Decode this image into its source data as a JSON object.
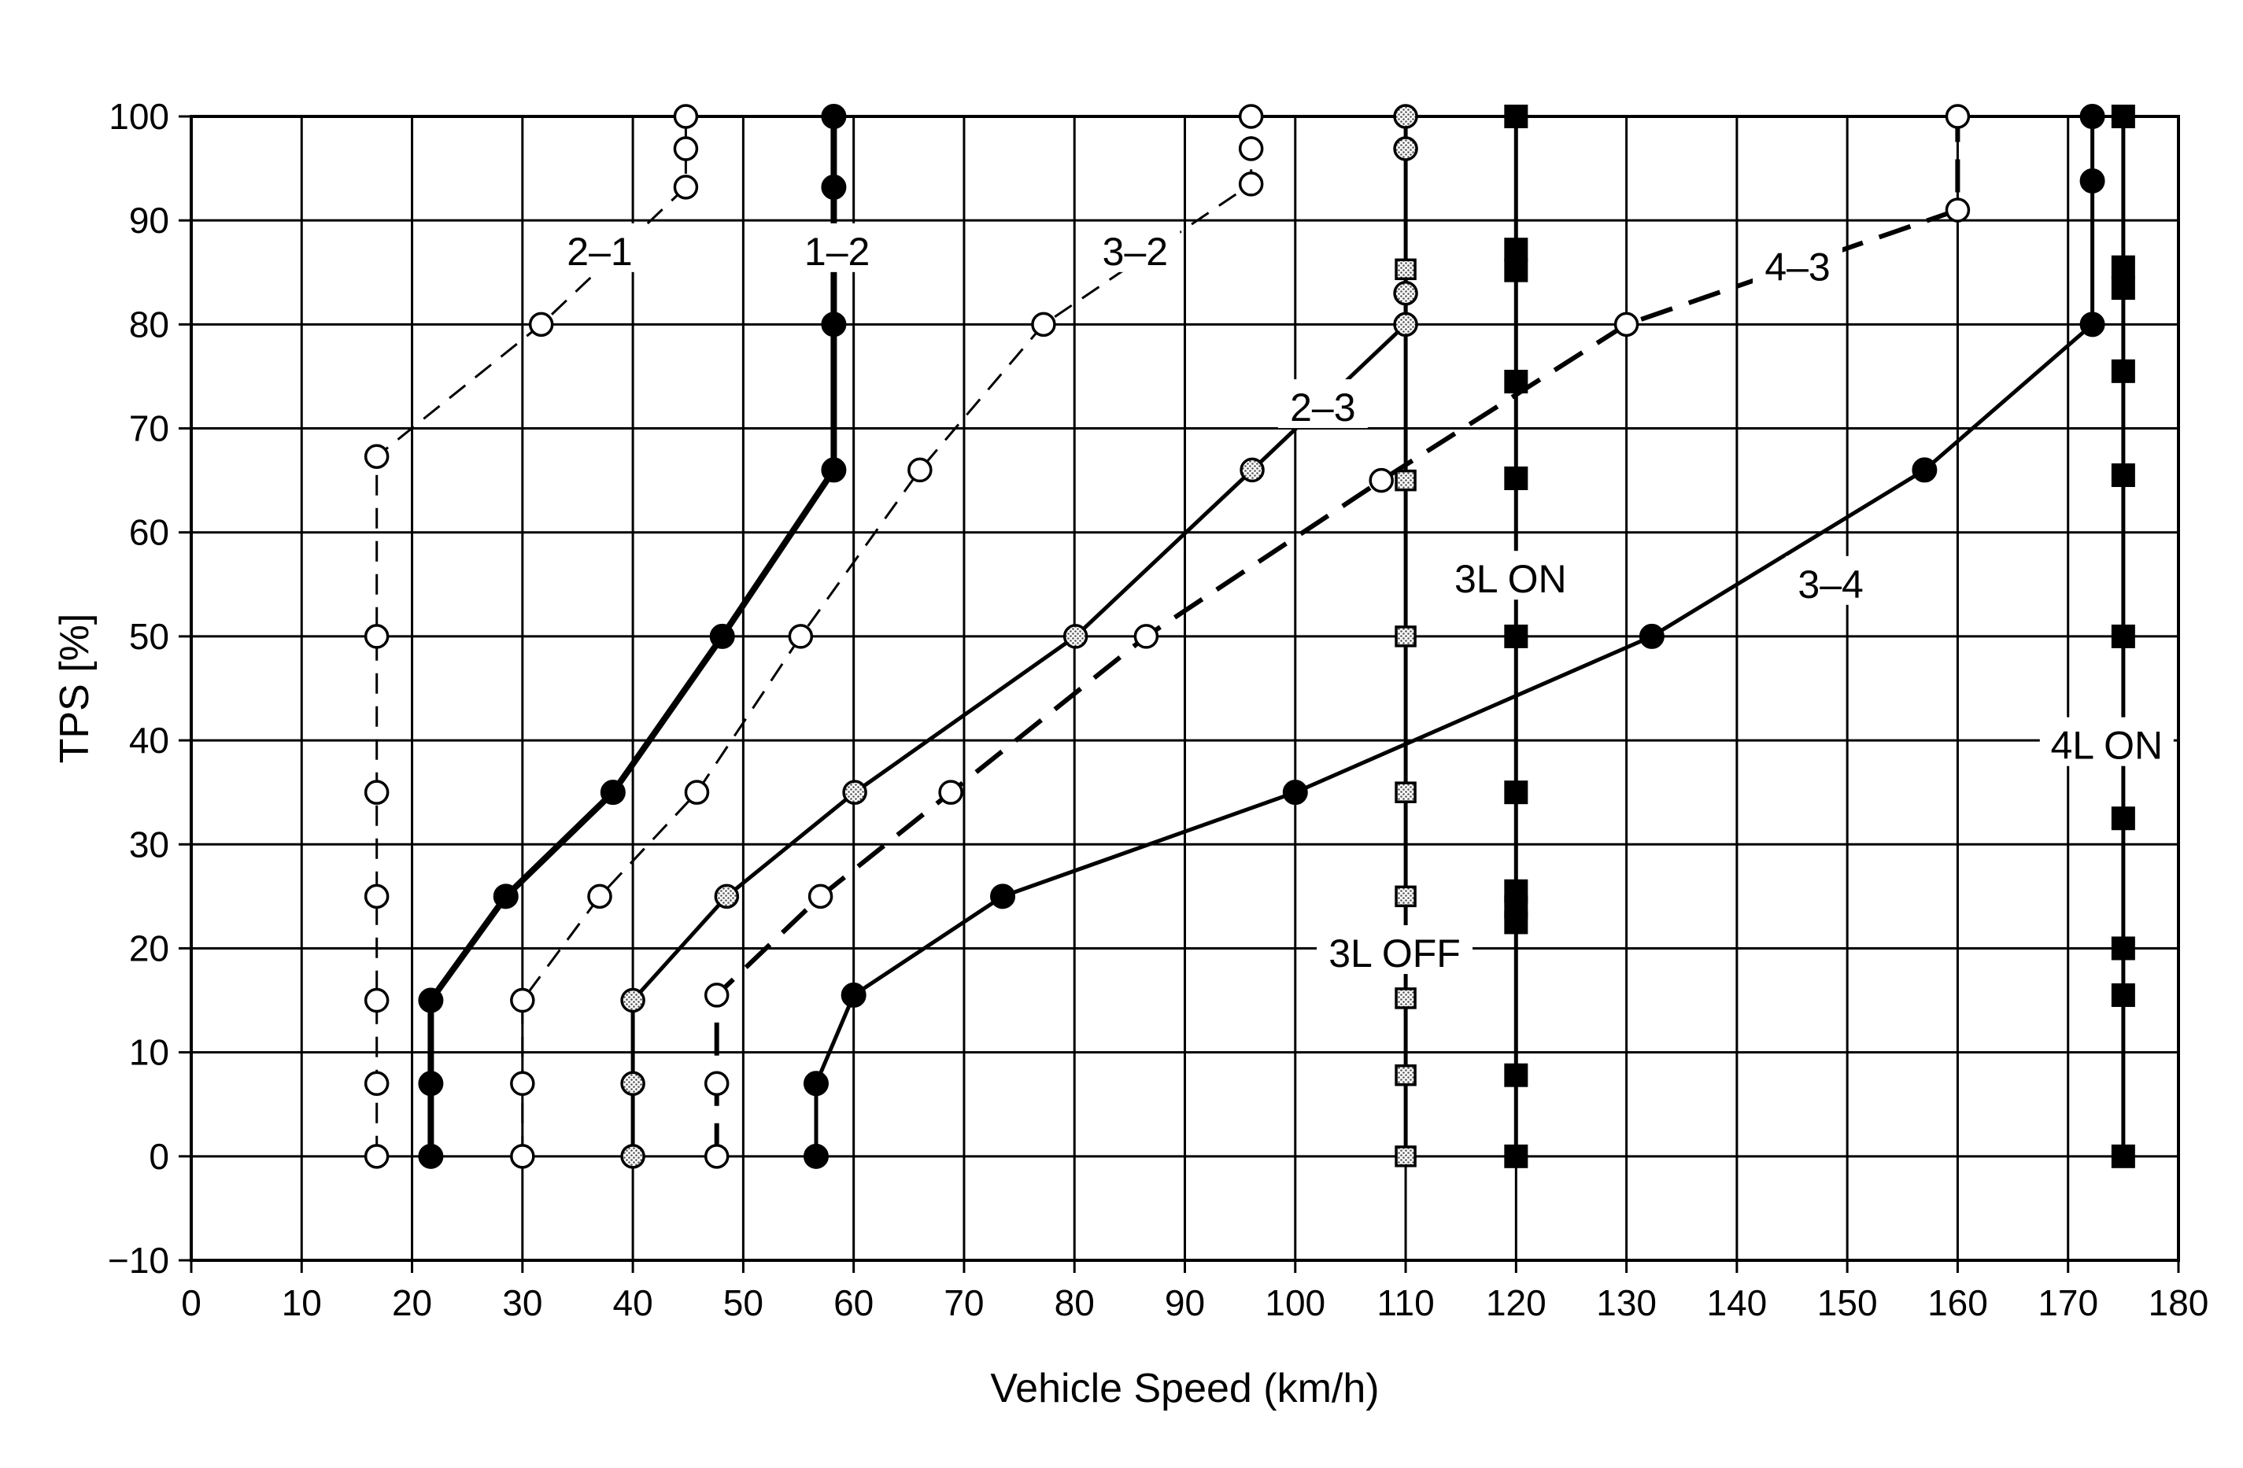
{
  "chart_data": {
    "type": "line",
    "title": "",
    "xlabel": "Vehicle Speed (km/h)",
    "ylabel": "TPS [%]",
    "xlim": [
      0,
      180
    ],
    "ylim": [
      -10,
      100
    ],
    "xticks": [
      0,
      10,
      20,
      30,
      40,
      50,
      60,
      70,
      80,
      90,
      100,
      110,
      120,
      130,
      140,
      150,
      160,
      170,
      180
    ],
    "yticks": [
      -10,
      0,
      10,
      20,
      30,
      40,
      50,
      60,
      70,
      80,
      90,
      100
    ],
    "grid": true,
    "colors": {
      "line": "#000000",
      "grid": "#000000",
      "shade": "#bdbdbd",
      "background": "#ffffff"
    },
    "series": [
      {
        "name": "2–1",
        "style": "dashed-thin",
        "marker": "open-circle",
        "points": [
          [
            16.8,
            0
          ],
          [
            16.8,
            7
          ],
          [
            16.8,
            15
          ],
          [
            16.8,
            25
          ],
          [
            16.8,
            35
          ],
          [
            16.8,
            50
          ],
          [
            16.8,
            67.3
          ],
          [
            31.7,
            80
          ],
          [
            44.8,
            93.2
          ],
          [
            44.8,
            96.9
          ],
          [
            44.8,
            100
          ]
        ]
      },
      {
        "name": "1–2",
        "style": "solid-thick",
        "marker": "filled-circle",
        "points": [
          [
            21.7,
            0
          ],
          [
            21.7,
            7
          ],
          [
            21.7,
            15
          ],
          [
            28.5,
            25
          ],
          [
            38.2,
            35
          ],
          [
            48.1,
            50
          ],
          [
            58.2,
            66
          ],
          [
            58.2,
            80
          ],
          [
            58.2,
            93.2
          ],
          [
            58.2,
            100
          ]
        ]
      },
      {
        "name": "3–2",
        "style": "dashed-thin",
        "marker": "open-circle",
        "points": [
          [
            30,
            0
          ],
          [
            30,
            7
          ],
          [
            30,
            15
          ],
          [
            37,
            25
          ],
          [
            45.8,
            35
          ],
          [
            55.2,
            50
          ],
          [
            66,
            66
          ],
          [
            77.2,
            80
          ],
          [
            96,
            93.5
          ],
          [
            96,
            96.9
          ],
          [
            96,
            100
          ]
        ]
      },
      {
        "name": "2–3",
        "style": "solid",
        "marker": "shaded-circle",
        "points": [
          [
            40,
            0
          ],
          [
            40,
            7
          ],
          [
            40,
            15
          ],
          [
            48.5,
            25
          ],
          [
            60.1,
            35
          ],
          [
            80.1,
            50
          ],
          [
            96.1,
            66
          ],
          [
            110,
            80
          ],
          [
            110,
            83
          ],
          [
            110,
            96.9
          ],
          [
            110,
            100
          ]
        ]
      },
      {
        "name": "4–3",
        "style": "dashed-thick",
        "marker": "open-circle",
        "points": [
          [
            47.6,
            0
          ],
          [
            47.6,
            7
          ],
          [
            47.6,
            15.5
          ],
          [
            57,
            25
          ],
          [
            68.8,
            35
          ],
          [
            86.5,
            50
          ],
          [
            107.8,
            65
          ],
          [
            130,
            80
          ],
          [
            160,
            91
          ],
          [
            160,
            100
          ]
        ]
      },
      {
        "name": "3–4",
        "style": "solid",
        "marker": "filled-circle",
        "points": [
          [
            56.6,
            0
          ],
          [
            56.6,
            7
          ],
          [
            60,
            15.5
          ],
          [
            73.5,
            25
          ],
          [
            100,
            35
          ],
          [
            132.3,
            50
          ],
          [
            157,
            66
          ],
          [
            172.2,
            80
          ],
          [
            172.2,
            93.8
          ],
          [
            172.2,
            100
          ]
        ]
      },
      {
        "name": "3L OFF",
        "style": "solid",
        "marker": "shaded-square",
        "points": [
          [
            110,
            0
          ],
          [
            110,
            7.8
          ],
          [
            110,
            15.2
          ],
          [
            110,
            25
          ],
          [
            110,
            35
          ],
          [
            110,
            50
          ],
          [
            110,
            65
          ],
          [
            110,
            85.3
          ]
        ]
      },
      {
        "name": "3L ON",
        "style": "solid",
        "marker": "filled-square",
        "points": [
          [
            120,
            0
          ],
          [
            120,
            7.8
          ],
          [
            120,
            22.5
          ],
          [
            120,
            24
          ],
          [
            120,
            25.5
          ],
          [
            120,
            35
          ],
          [
            120,
            50
          ],
          [
            120,
            65.2
          ],
          [
            120,
            74.5
          ],
          [
            120,
            85.2
          ],
          [
            120,
            87.2
          ],
          [
            120,
            100
          ]
        ]
      },
      {
        "name": "4L ON",
        "style": "solid",
        "marker": "filled-square",
        "points": [
          [
            175,
            0
          ],
          [
            175,
            15.5
          ],
          [
            175,
            20
          ],
          [
            175,
            32.5
          ],
          [
            175,
            50
          ],
          [
            175,
            65.5
          ],
          [
            175,
            75.5
          ],
          [
            175,
            83.5
          ],
          [
            175,
            85.5
          ],
          [
            175,
            100
          ]
        ]
      }
    ],
    "annotations": [
      {
        "text": "2–1",
        "x": 37,
        "y": 87
      },
      {
        "text": "1–2",
        "x": 58.5,
        "y": 87
      },
      {
        "text": "3–2",
        "x": 85.5,
        "y": 87
      },
      {
        "text": "4–3",
        "x": 145.5,
        "y": 85.5
      },
      {
        "text": "2–3",
        "x": 102.5,
        "y": 72
      },
      {
        "text": "3L ON",
        "x": 119.5,
        "y": 55.5
      },
      {
        "text": "3–4",
        "x": 148.5,
        "y": 55
      },
      {
        "text": "4L ON",
        "x": 173.5,
        "y": 39.5
      },
      {
        "text": "3L OFF",
        "x": 109,
        "y": 19.5
      }
    ]
  }
}
